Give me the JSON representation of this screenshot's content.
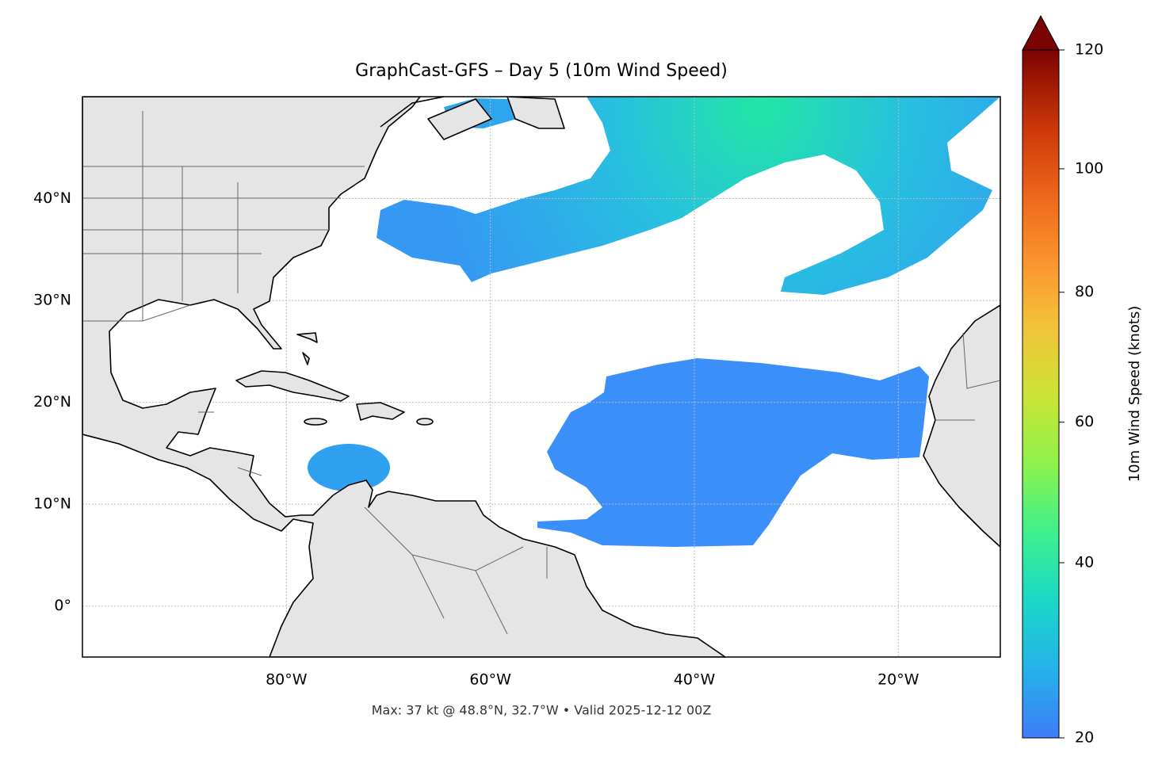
{
  "chart_data": {
    "type": "map",
    "title": "GraphCast-GFS – Day 5 (10m Wind Speed)",
    "footnote": "Max: 37 kt @ 48.8°N, 32.7°W • Valid 2025-12-12 00Z",
    "xlim": [
      -100,
      -10
    ],
    "ylim": [
      -5,
      50
    ],
    "xticks": [
      {
        "value": -80,
        "label": "80°W"
      },
      {
        "value": -60,
        "label": "60°W"
      },
      {
        "value": -40,
        "label": "40°W"
      },
      {
        "value": -20,
        "label": "20°W"
      }
    ],
    "yticks": [
      {
        "value": 0,
        "label": "0°"
      },
      {
        "value": 10,
        "label": "10°N"
      },
      {
        "value": 20,
        "label": "20°N"
      },
      {
        "value": 30,
        "label": "30°N"
      },
      {
        "value": 40,
        "label": "40°N"
      }
    ],
    "grid": true,
    "colorbar": {
      "label": "10m Wind Speed (knots)",
      "lim": [
        20,
        120
      ],
      "ticks": [
        20,
        40,
        60,
        80,
        100,
        120
      ],
      "scale": "power",
      "gamma": 0.85,
      "extend": "max"
    }
  }
}
